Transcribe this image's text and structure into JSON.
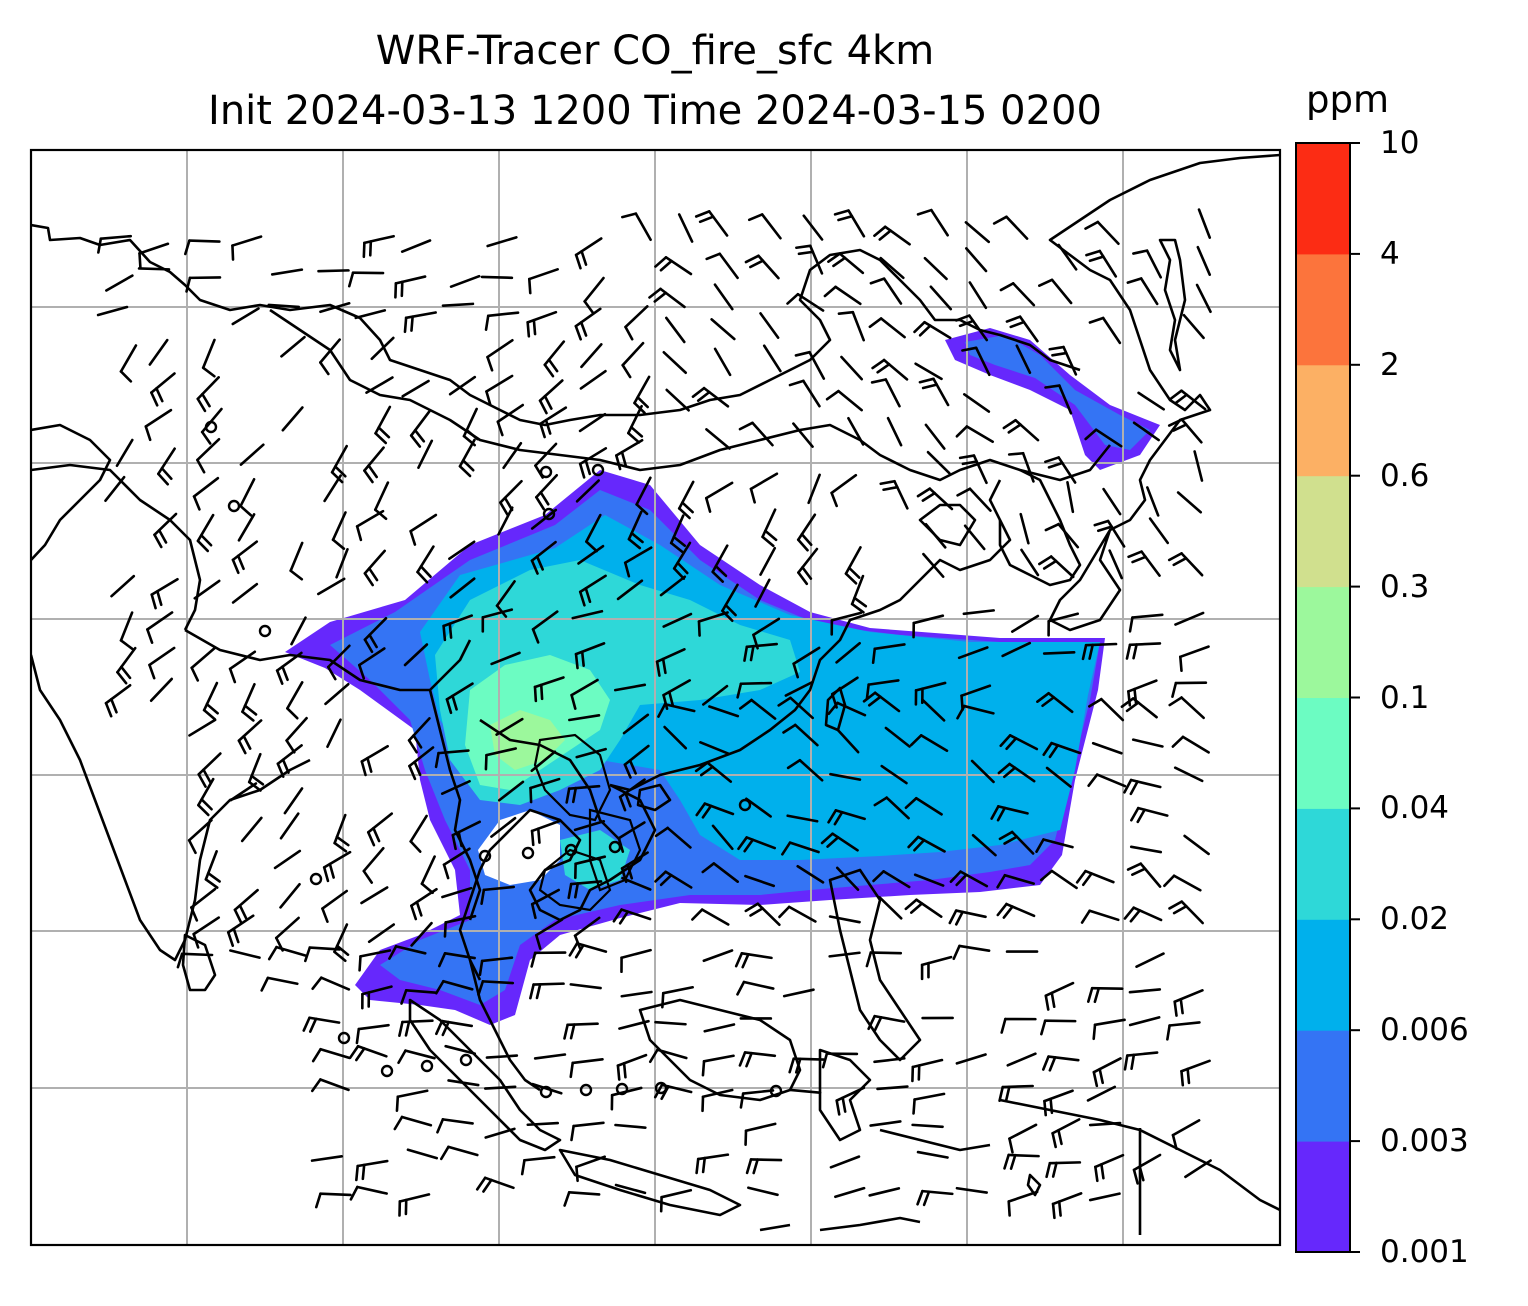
{
  "title": {
    "line1": "WRF-Tracer CO_fire_sfc 4km",
    "line2": "Init 2024-03-13 1200 Time 2024-03-15 0200"
  },
  "colorbar": {
    "unit": "ppm",
    "levels": [
      "0.001",
      "0.003",
      "0.006",
      "0.02",
      "0.04",
      "0.1",
      "0.3",
      "0.6",
      "2",
      "4",
      "10"
    ],
    "colors": [
      "#6628fc",
      "#3474f4",
      "#00b0ec",
      "#2ed8d8",
      "#6cfcc2",
      "#9cf89c",
      "#d0e08e",
      "#fcb064",
      "#fc743c",
      "#fc2c14"
    ]
  },
  "map": {
    "gridline_color": "#b0b0b0",
    "coastline_color": "#000000",
    "wind_barb_color": "#000000"
  }
}
